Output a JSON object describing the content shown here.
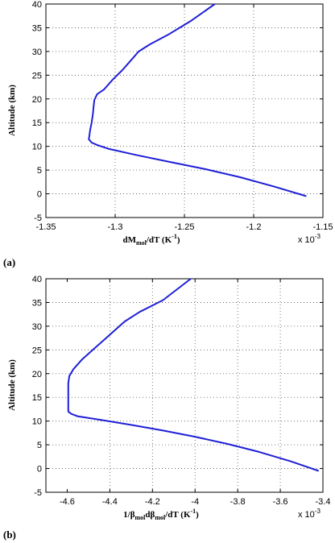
{
  "chart_data": [
    {
      "type": "line",
      "panel_label": "(a)",
      "ylabel": "Altitude (km)",
      "xlabel_parts": {
        "main": "dM",
        "sub": "mol",
        "rest": "/dT (K",
        "sup": "-1",
        "end": ")"
      },
      "x_multiplier": {
        "base": "x 10",
        "exp": "-3"
      },
      "xlim": [
        -1.35,
        -1.15
      ],
      "ylim": [
        -5,
        40
      ],
      "xticks": [
        "-1.35",
        "-1.3",
        "-1.25",
        "-1.2",
        "-1.15"
      ],
      "xtick_values": [
        -1.35,
        -1.3,
        -1.25,
        -1.2,
        -1.15
      ],
      "yticks": [
        "-5",
        "0",
        "5",
        "10",
        "15",
        "20",
        "25",
        "30",
        "35",
        "40"
      ],
      "ytick_values": [
        -5,
        0,
        5,
        10,
        15,
        20,
        25,
        30,
        35,
        40
      ],
      "grid": true,
      "color": "#1f1fd8",
      "series": [
        {
          "x": [
            -1.162,
            -1.185,
            -1.21,
            -1.235,
            -1.262,
            -1.285,
            -1.305,
            -1.313,
            -1.317,
            -1.319,
            -1.3185,
            -1.318,
            -1.317,
            -1.316,
            -1.3155,
            -1.315,
            -1.313,
            -1.308,
            -1.302,
            -1.295,
            -1.289,
            -1.283,
            -1.275,
            -1.262,
            -1.245,
            -1.228
          ],
          "y": [
            -0.5,
            1.5,
            3.5,
            5.2,
            6.8,
            8.2,
            9.5,
            10.3,
            10.8,
            11.5,
            12.5,
            13.5,
            15.0,
            17.0,
            18.5,
            19.8,
            21.0,
            22.0,
            24.0,
            26.0,
            28.0,
            30.0,
            31.5,
            33.5,
            36.5,
            40.0
          ]
        }
      ]
    },
    {
      "type": "line",
      "panel_label": "(b)",
      "ylabel": "Altitude (km)",
      "xlabel_parts": {
        "pre": "1/β",
        "sub1": "mol",
        "mid": "dβ",
        "sub2": "mol",
        "rest": "/dT (K",
        "sup": "-1",
        "end": ")"
      },
      "x_multiplier": {
        "base": "x 10",
        "exp": "-3"
      },
      "xlim": [
        -4.7,
        -3.4
      ],
      "ylim": [
        -5,
        40
      ],
      "xticks": [
        "-4.6",
        "-4.4",
        "-4.2",
        "-4",
        "-3.8",
        "-3.6",
        "-3.4"
      ],
      "xtick_values": [
        -4.6,
        -4.4,
        -4.2,
        -4.0,
        -3.8,
        -3.6,
        -3.4
      ],
      "yticks": [
        "-5",
        "0",
        "5",
        "10",
        "15",
        "20",
        "25",
        "30",
        "35",
        "40"
      ],
      "ytick_values": [
        -5,
        0,
        5,
        10,
        15,
        20,
        25,
        30,
        35,
        40
      ],
      "grid": true,
      "color": "#1f1fd8",
      "series": [
        {
          "x": [
            -3.42,
            -3.55,
            -3.7,
            -3.85,
            -4.0,
            -4.15,
            -4.3,
            -4.45,
            -4.55,
            -4.58,
            -4.595,
            -4.595,
            -4.595,
            -4.595,
            -4.59,
            -4.57,
            -4.53,
            -4.48,
            -4.43,
            -4.38,
            -4.33,
            -4.26,
            -4.15,
            -4.02
          ],
          "y": [
            -0.5,
            1.5,
            3.5,
            5.2,
            6.7,
            8.0,
            9.2,
            10.3,
            11.0,
            11.5,
            12.0,
            14.0,
            16.0,
            18.0,
            19.5,
            21.0,
            23.0,
            25.0,
            27.0,
            29.0,
            31.0,
            33.0,
            35.5,
            40.0
          ]
        }
      ]
    }
  ]
}
